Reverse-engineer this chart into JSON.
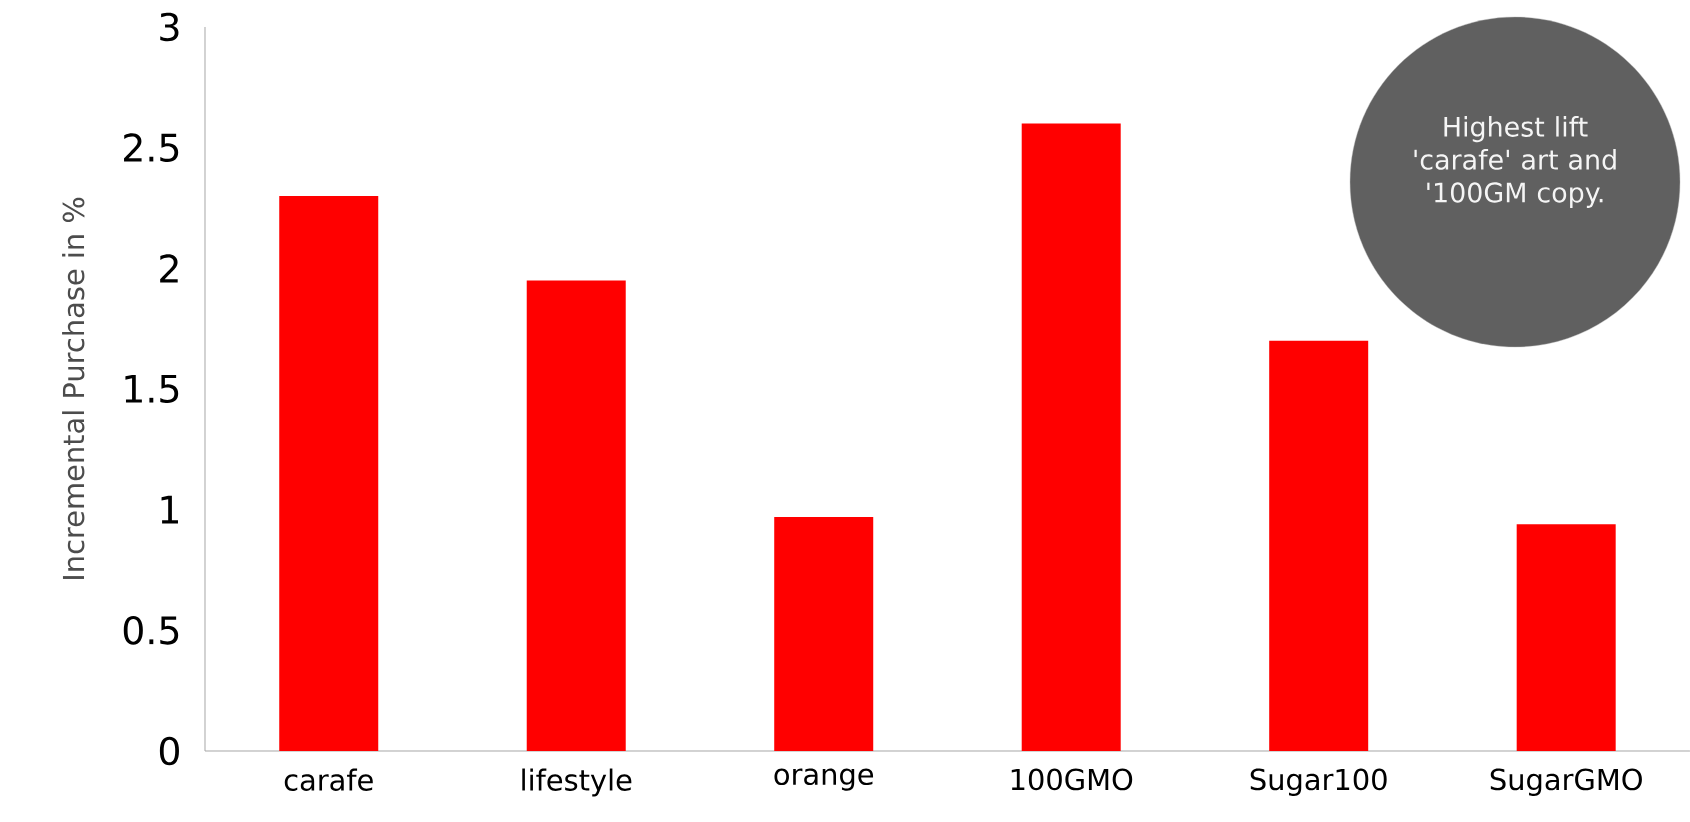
{
  "chart_data": {
    "type": "bar",
    "ylabel": "Incremental Purchase in %",
    "categories": [
      "carafe",
      "lifestyle",
      "orange",
      "100GMO",
      "Sugar100",
      "SugarGMO"
    ],
    "values": [
      2.3,
      1.95,
      0.97,
      2.6,
      1.7,
      0.94
    ],
    "color": "#ff0000",
    "ylim": [
      0,
      3
    ],
    "yticks": [
      0,
      0.5,
      1,
      1.5,
      2,
      2.5,
      3
    ],
    "grid": false,
    "annotations": [
      "Highest lift 'carafe' art and '100GM copy."
    ]
  }
}
